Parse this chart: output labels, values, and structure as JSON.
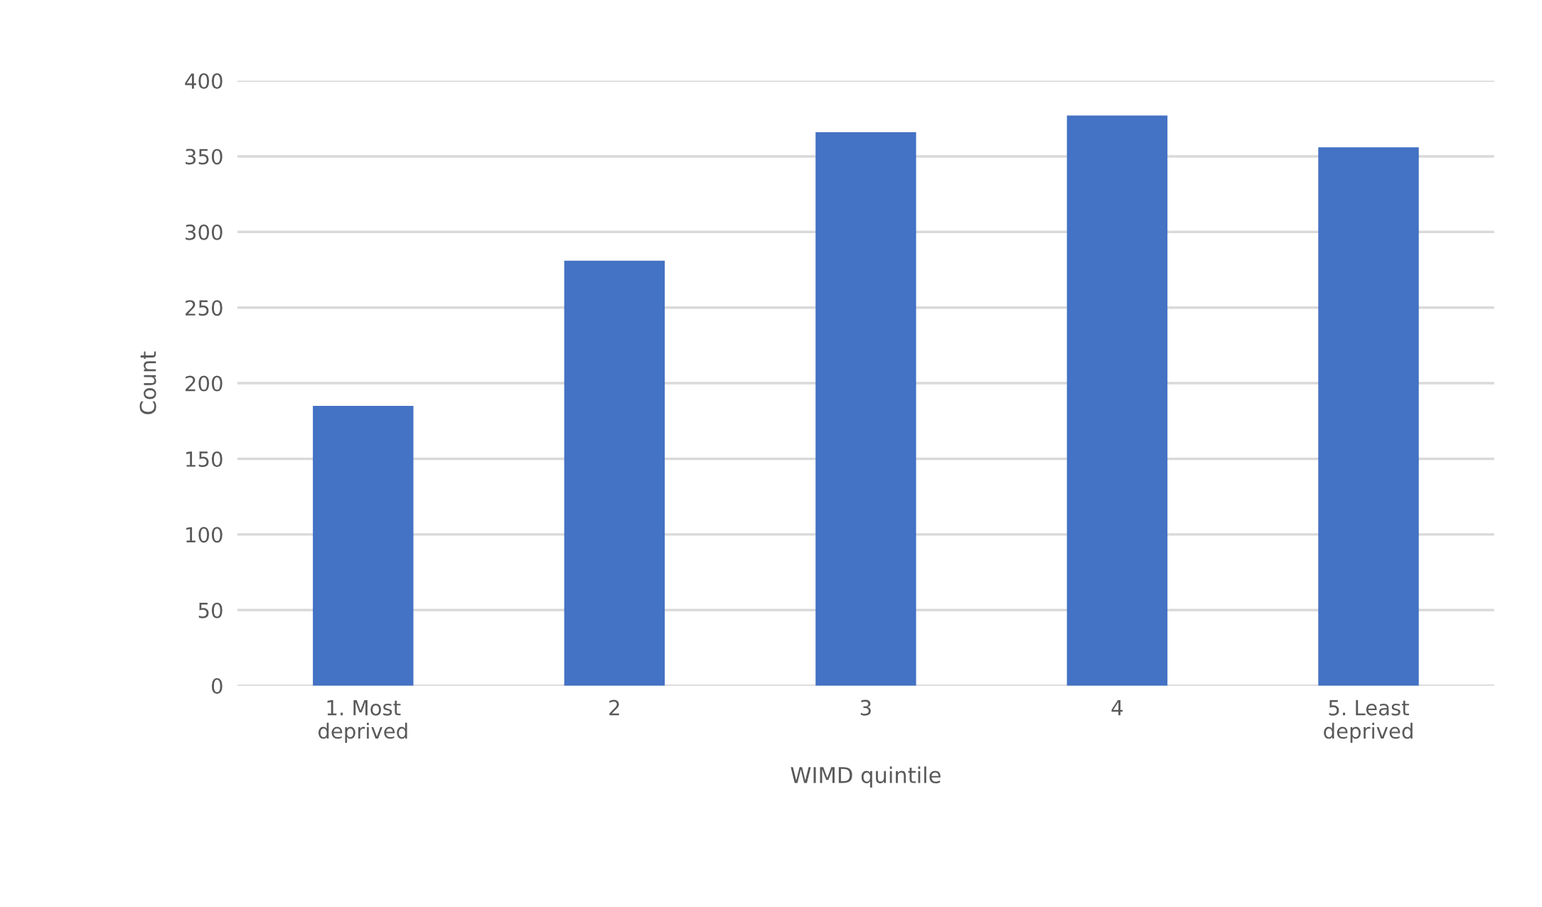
{
  "chart_data": {
    "type": "bar",
    "xlabel": "WIMD quintile",
    "ylabel": "Count",
    "categories": [
      "1. Most\ndeprived",
      "2",
      "3",
      "4",
      "5. Least\ndeprived"
    ],
    "values": [
      185,
      281,
      366,
      377,
      356
    ],
    "color": "#4472c4",
    "ylim": [
      0,
      400
    ],
    "yticks": [
      0,
      50,
      100,
      150,
      200,
      250,
      300,
      350,
      400
    ],
    "grid": "y",
    "legend": false
  }
}
